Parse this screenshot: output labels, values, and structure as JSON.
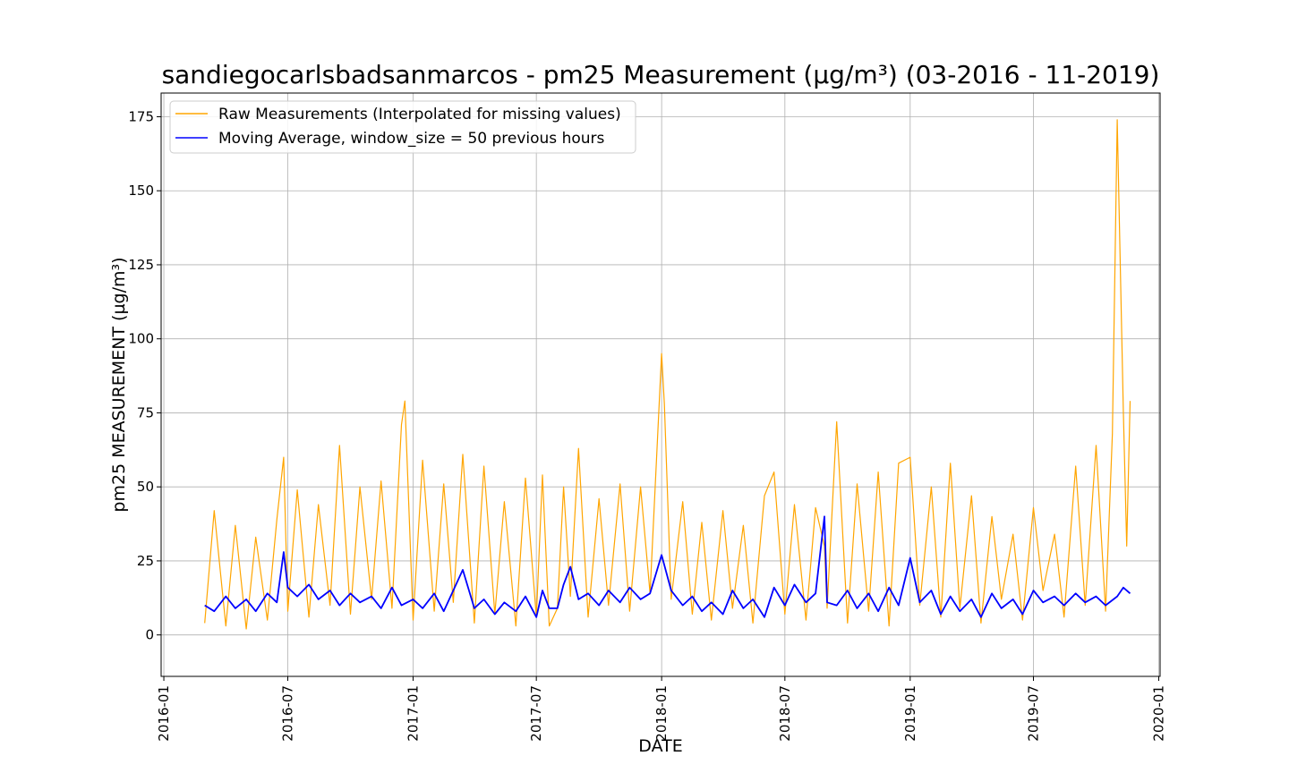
{
  "chart_data": {
    "type": "line",
    "title": "sandiegocarlsbadsanmarcos - pm25 Measurement (µg/m³) (03-2016 - 11-2019)",
    "xlabel": "DATE",
    "ylabel": "pm25 MEASUREMENT (µg/m³)",
    "xlim": [
      "2015-12-28",
      "2020-01-03"
    ],
    "ylim": [
      -14,
      183
    ],
    "grid": true,
    "legend_position": "top-left",
    "x_ticks": [
      "2016-01",
      "2016-07",
      "2017-01",
      "2017-07",
      "2018-01",
      "2018-07",
      "2019-01",
      "2019-07",
      "2020-01"
    ],
    "y_ticks": [
      0,
      25,
      50,
      75,
      100,
      125,
      150,
      175
    ],
    "series": [
      {
        "name": "Raw Measurements (Interpolated for missing values)",
        "color": "#ffa500",
        "x": [
          "2016-03-01",
          "2016-03-15",
          "2016-04-01",
          "2016-04-15",
          "2016-05-01",
          "2016-05-15",
          "2016-06-01",
          "2016-06-15",
          "2016-06-25",
          "2016-07-01",
          "2016-07-15",
          "2016-08-01",
          "2016-08-15",
          "2016-09-01",
          "2016-09-15",
          "2016-10-01",
          "2016-10-15",
          "2016-11-01",
          "2016-11-15",
          "2016-12-01",
          "2016-12-15",
          "2016-12-20",
          "2017-01-01",
          "2017-01-15",
          "2017-02-01",
          "2017-02-15",
          "2017-03-01",
          "2017-03-15",
          "2017-04-01",
          "2017-04-15",
          "2017-05-01",
          "2017-05-15",
          "2017-06-01",
          "2017-06-15",
          "2017-07-01",
          "2017-07-10",
          "2017-07-20",
          "2017-08-01",
          "2017-08-10",
          "2017-08-20",
          "2017-09-01",
          "2017-09-15",
          "2017-10-01",
          "2017-10-15",
          "2017-11-01",
          "2017-11-15",
          "2017-12-01",
          "2017-12-15",
          "2018-01-01",
          "2018-01-05",
          "2018-01-15",
          "2018-02-01",
          "2018-02-15",
          "2018-03-01",
          "2018-03-15",
          "2018-04-01",
          "2018-04-15",
          "2018-05-01",
          "2018-05-15",
          "2018-06-01",
          "2018-06-15",
          "2018-07-01",
          "2018-07-15",
          "2018-08-01",
          "2018-08-15",
          "2018-08-28",
          "2018-09-01",
          "2018-09-15",
          "2018-10-01",
          "2018-10-15",
          "2018-11-01",
          "2018-11-15",
          "2018-12-01",
          "2018-12-15",
          "2019-01-01",
          "2019-01-15",
          "2019-02-01",
          "2019-02-15",
          "2019-03-01",
          "2019-03-15",
          "2019-04-01",
          "2019-04-15",
          "2019-05-01",
          "2019-05-15",
          "2019-06-01",
          "2019-06-15",
          "2019-07-01",
          "2019-07-15",
          "2019-08-01",
          "2019-08-15",
          "2019-09-01",
          "2019-09-15",
          "2019-10-01",
          "2019-10-15",
          "2019-10-25",
          "2019-11-01",
          "2019-11-10",
          "2019-11-15",
          "2019-11-20"
        ],
        "y": [
          4,
          42,
          3,
          37,
          2,
          33,
          5,
          39,
          60,
          8,
          49,
          6,
          44,
          10,
          64,
          7,
          50,
          12,
          52,
          9,
          71,
          79,
          5,
          59,
          8,
          51,
          11,
          61,
          4,
          57,
          7,
          45,
          3,
          53,
          6,
          54,
          3,
          9,
          50,
          13,
          63,
          6,
          46,
          10,
          51,
          8,
          50,
          14,
          95,
          78,
          12,
          45,
          7,
          38,
          5,
          42,
          9,
          37,
          4,
          47,
          55,
          7,
          44,
          5,
          43,
          30,
          9,
          72,
          4,
          51,
          8,
          55,
          3,
          58,
          60,
          10,
          50,
          6,
          58,
          9,
          47,
          4,
          40,
          12,
          34,
          5,
          43,
          15,
          34,
          6,
          57,
          10,
          64,
          8,
          68,
          174,
          76,
          30,
          79
        ]
      },
      {
        "name": "Moving Average, window_size = 50 previous hours",
        "color": "#0000ff",
        "x": [
          "2016-03-01",
          "2016-03-15",
          "2016-04-01",
          "2016-04-15",
          "2016-05-01",
          "2016-05-15",
          "2016-06-01",
          "2016-06-15",
          "2016-06-25",
          "2016-07-01",
          "2016-07-15",
          "2016-08-01",
          "2016-08-15",
          "2016-09-01",
          "2016-09-15",
          "2016-10-01",
          "2016-10-15",
          "2016-11-01",
          "2016-11-15",
          "2016-12-01",
          "2016-12-15",
          "2017-01-01",
          "2017-01-15",
          "2017-02-01",
          "2017-02-15",
          "2017-03-01",
          "2017-03-15",
          "2017-04-01",
          "2017-04-15",
          "2017-05-01",
          "2017-05-15",
          "2017-06-01",
          "2017-06-15",
          "2017-07-01",
          "2017-07-10",
          "2017-07-20",
          "2017-08-01",
          "2017-08-10",
          "2017-08-20",
          "2017-09-01",
          "2017-09-15",
          "2017-10-01",
          "2017-10-15",
          "2017-11-01",
          "2017-11-15",
          "2017-12-01",
          "2017-12-15",
          "2018-01-01",
          "2018-01-15",
          "2018-02-01",
          "2018-02-15",
          "2018-03-01",
          "2018-03-15",
          "2018-04-01",
          "2018-04-15",
          "2018-05-01",
          "2018-05-15",
          "2018-06-01",
          "2018-06-15",
          "2018-07-01",
          "2018-07-15",
          "2018-08-01",
          "2018-08-15",
          "2018-08-28",
          "2018-09-01",
          "2018-09-15",
          "2018-10-01",
          "2018-10-15",
          "2018-11-01",
          "2018-11-15",
          "2018-12-01",
          "2018-12-15",
          "2019-01-01",
          "2019-01-15",
          "2019-02-01",
          "2019-02-15",
          "2019-03-01",
          "2019-03-15",
          "2019-04-01",
          "2019-04-15",
          "2019-05-01",
          "2019-05-15",
          "2019-06-01",
          "2019-06-15",
          "2019-07-01",
          "2019-07-15",
          "2019-08-01",
          "2019-08-15",
          "2019-09-01",
          "2019-09-15",
          "2019-10-01",
          "2019-10-15",
          "2019-11-01",
          "2019-11-10",
          "2019-11-20"
        ],
        "y": [
          10,
          8,
          13,
          9,
          12,
          8,
          14,
          11,
          28,
          16,
          13,
          17,
          12,
          15,
          10,
          14,
          11,
          13,
          9,
          16,
          10,
          12,
          9,
          14,
          8,
          15,
          22,
          9,
          12,
          7,
          11,
          8,
          13,
          6,
          15,
          9,
          9,
          17,
          23,
          12,
          14,
          10,
          15,
          11,
          16,
          12,
          14,
          27,
          15,
          10,
          13,
          8,
          11,
          7,
          15,
          9,
          12,
          6,
          16,
          10,
          17,
          11,
          14,
          40,
          11,
          10,
          15,
          9,
          14,
          8,
          16,
          10,
          26,
          11,
          15,
          7,
          13,
          8,
          12,
          6,
          14,
          9,
          12,
          7,
          15,
          11,
          13,
          10,
          14,
          11,
          13,
          10,
          13,
          16,
          14
        ]
      }
    ]
  }
}
